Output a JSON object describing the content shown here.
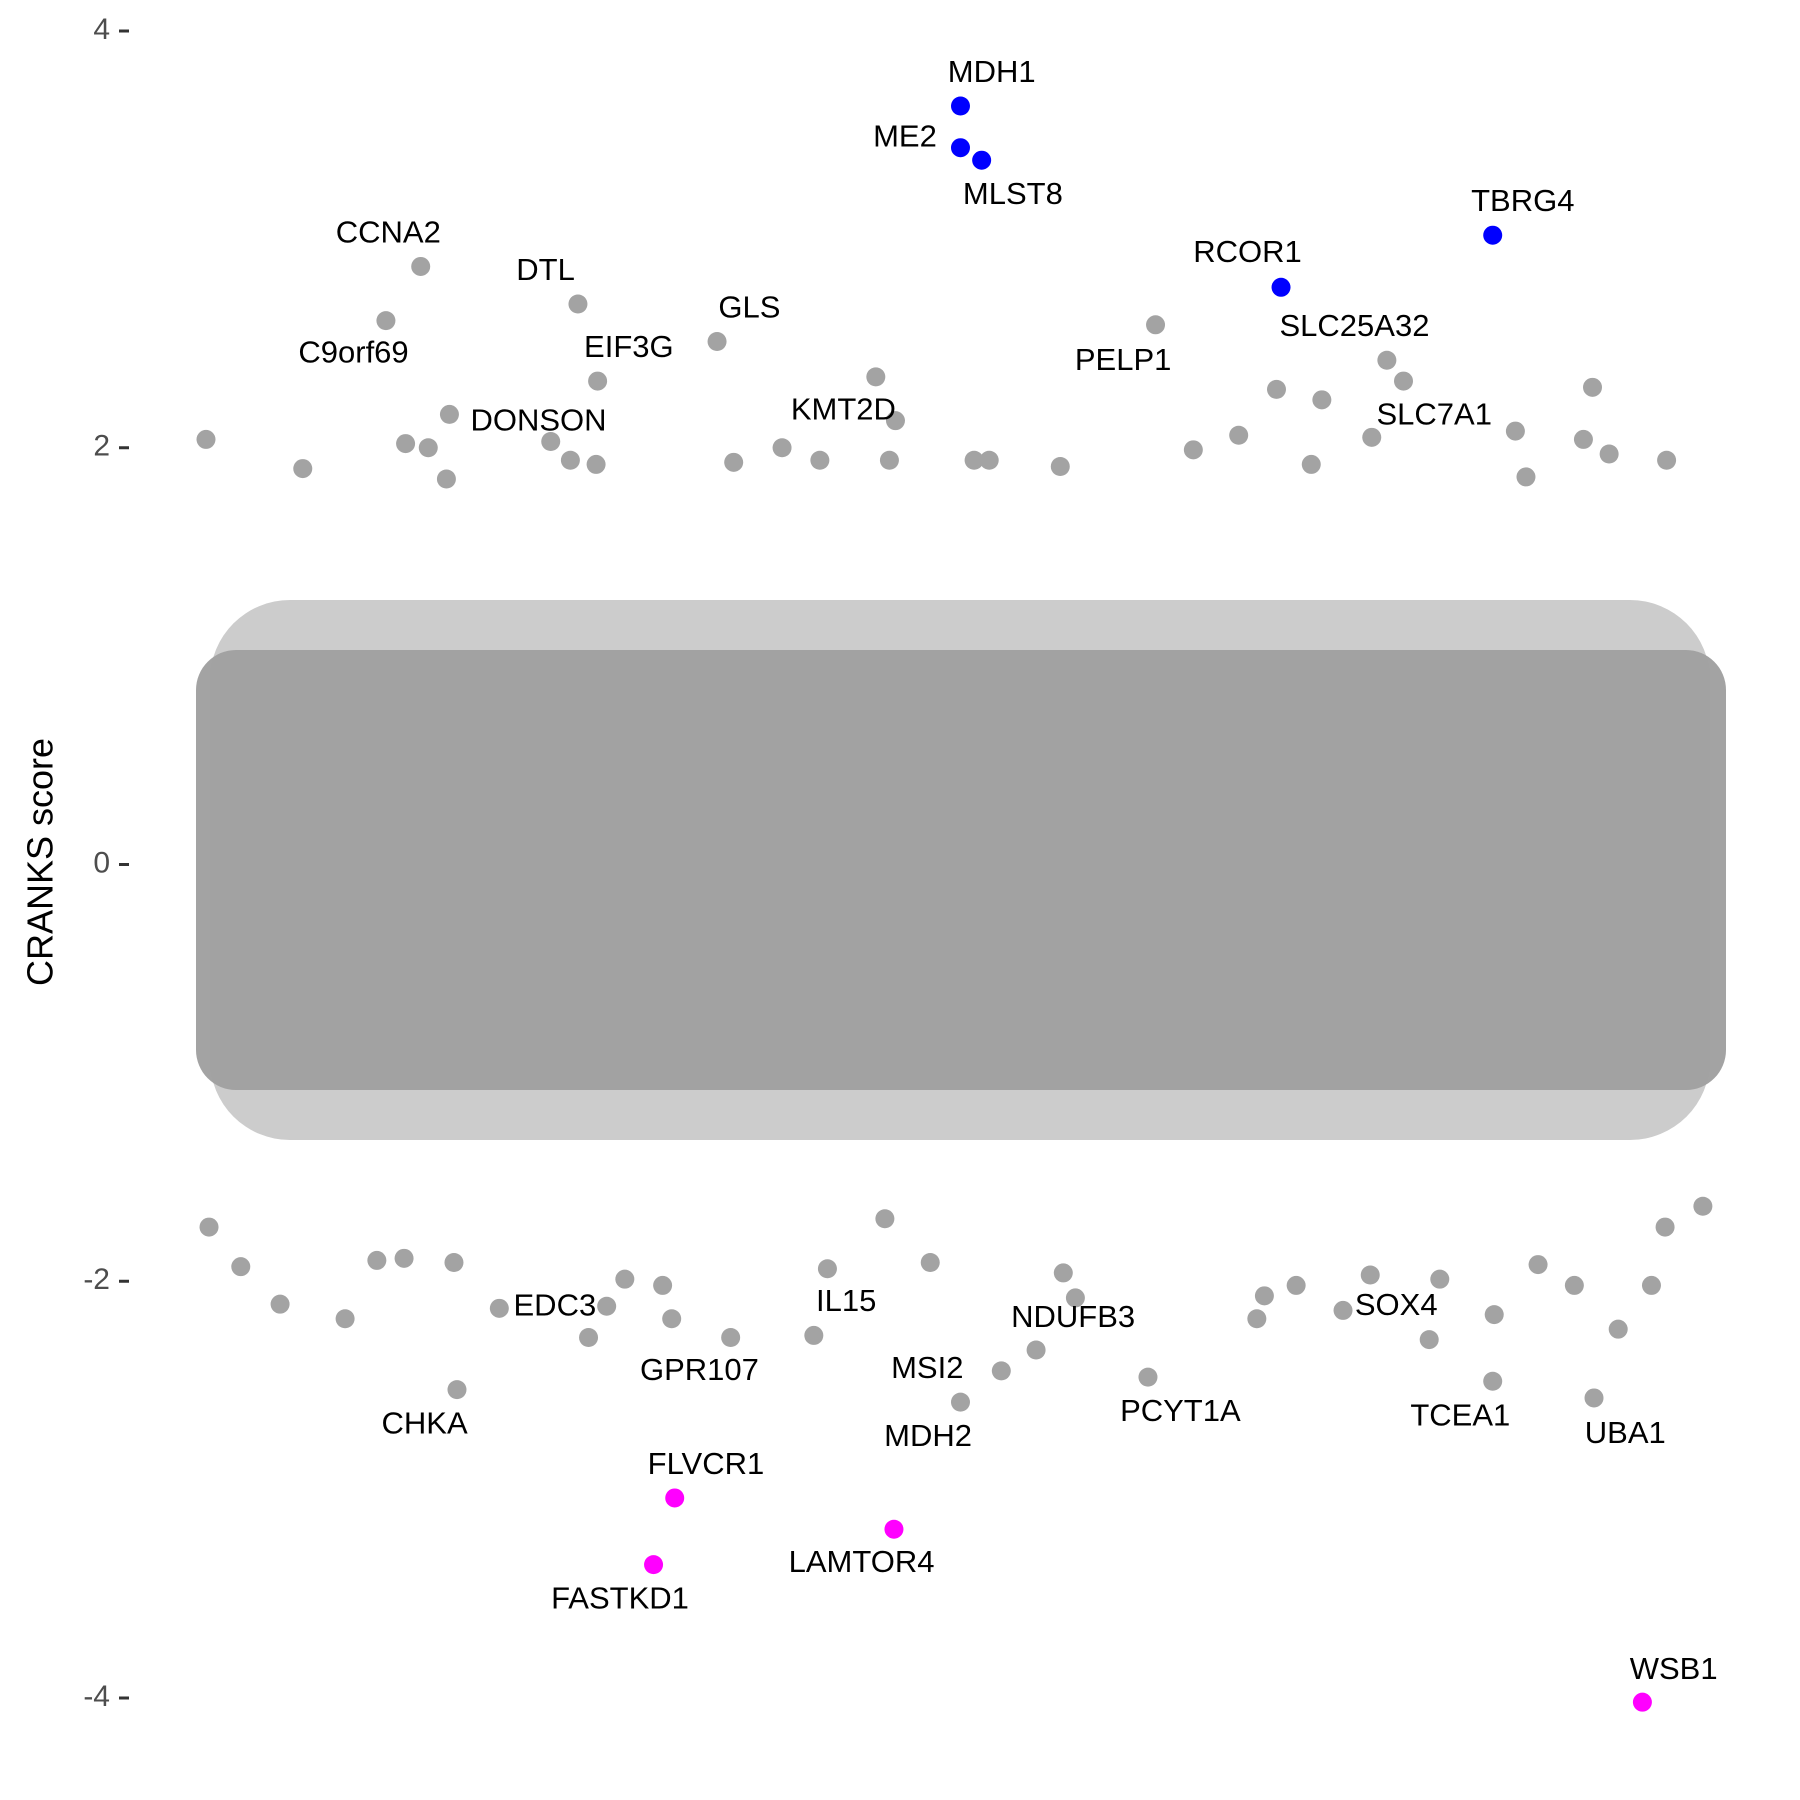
{
  "chart_data": {
    "type": "scatter",
    "ylabel": "CRANKS score",
    "ylim": [
      -4,
      4
    ],
    "yticks": [
      4,
      2,
      0,
      -2,
      -4
    ],
    "xlim": [
      0,
      100
    ],
    "colors": {
      "other": "#a3a3a3",
      "up": "#0000ff",
      "down": "#ff00ff"
    },
    "points": [
      {
        "label": "MDH1",
        "x": 49.9,
        "y": 3.64,
        "group": "up"
      },
      {
        "label": "ME2",
        "x": 49.9,
        "y": 3.44,
        "group": "up"
      },
      {
        "label": "MLST8",
        "x": 51.3,
        "y": 3.38,
        "group": "up"
      },
      {
        "label": "TBRG4",
        "x": 85.1,
        "y": 3.02,
        "group": "up"
      },
      {
        "label": "RCOR1",
        "x": 71.1,
        "y": 2.77,
        "group": "up"
      },
      {
        "label": "CCNA2",
        "x": 14.2,
        "y": 2.87,
        "group": "other"
      },
      {
        "label": "C9orf69",
        "x": 11.9,
        "y": 2.61,
        "group": "other"
      },
      {
        "label": "DTL",
        "x": 24.6,
        "y": 2.69,
        "group": "other"
      },
      {
        "label": "GLS",
        "x": 33.8,
        "y": 2.51,
        "group": "other"
      },
      {
        "label": "EIF3G",
        "x": 25.9,
        "y": 2.32,
        "group": "other"
      },
      {
        "label": "DONSON",
        "x": 16.1,
        "y": 2.16,
        "group": "other"
      },
      {
        "label": "KMT2D",
        "x": 45.6,
        "y": 2.13,
        "group": "other"
      },
      {
        "label": "PELP1",
        "x": 62.8,
        "y": 2.59,
        "group": "other"
      },
      {
        "label": "SLC25A32",
        "x": 78.1,
        "y": 2.42,
        "group": "other"
      },
      {
        "label": "SLC7A1",
        "x": 77.1,
        "y": 2.05,
        "group": "other"
      },
      {
        "label": "EDC3",
        "x": 19.4,
        "y": -2.13,
        "group": "other"
      },
      {
        "label": "GPR107",
        "x": 30.8,
        "y": -2.18,
        "group": "other"
      },
      {
        "label": "IL15",
        "x": 40.2,
        "y": -2.26,
        "group": "other"
      },
      {
        "label": "CHKA",
        "x": 16.6,
        "y": -2.52,
        "group": "other"
      },
      {
        "label": "MSI2",
        "x": 52.6,
        "y": -2.43,
        "group": "other"
      },
      {
        "label": "MDH2",
        "x": 49.9,
        "y": -2.58,
        "group": "other"
      },
      {
        "label": "NDUFB3",
        "x": 54.9,
        "y": -2.33,
        "group": "other"
      },
      {
        "label": "PCYT1A",
        "x": 62.3,
        "y": -2.46,
        "group": "other"
      },
      {
        "label": "SOX4",
        "x": 75.2,
        "y": -2.14,
        "group": "other"
      },
      {
        "label": "TCEA1",
        "x": 85.1,
        "y": -2.48,
        "group": "other"
      },
      {
        "label": "UBA1",
        "x": 91.8,
        "y": -2.56,
        "group": "other"
      },
      {
        "label": "FLVCR1",
        "x": 31.0,
        "y": -3.04,
        "group": "down"
      },
      {
        "label": "FASTKD1",
        "x": 29.6,
        "y": -3.36,
        "group": "down"
      },
      {
        "label": "LAMTOR4",
        "x": 45.5,
        "y": -3.19,
        "group": "down"
      },
      {
        "label": "WSB1",
        "x": 95.0,
        "y": -4.02,
        "group": "down"
      }
    ],
    "background": {
      "x": [
        0,
        6.4,
        13.2,
        14.7,
        15.9,
        22.8,
        24.1,
        25.8,
        34.9,
        38.1,
        40.6,
        44.3,
        45.2,
        50.8,
        51.8,
        56.5,
        65.3,
        68.3,
        70.8,
        73.8,
        79.2,
        86.6,
        91.7,
        91.1,
        92.8,
        96.6,
        73.1,
        87.3,
        0.2,
        2.3,
        4.9,
        9.2,
        11.3,
        13.1,
        16.4,
        25.3,
        26.5,
        27.7,
        30.2,
        34.7,
        41.1,
        44.9,
        47.9,
        56.7,
        57.5,
        69.5,
        70.0,
        72.1,
        77.0,
        81.6,
        80.9,
        85.2,
        88.1,
        90.5,
        93.4,
        95.6,
        96.5,
        99.0
      ],
      "y": [
        2.04,
        1.9,
        2.02,
        2.0,
        1.85,
        2.03,
        1.94,
        1.92,
        1.93,
        2.0,
        1.94,
        2.34,
        1.94,
        1.94,
        1.94,
        1.91,
        1.99,
        2.06,
        2.28,
        2.23,
        2.32,
        2.08,
        2.29,
        2.04,
        1.97,
        1.94,
        1.92,
        1.86,
        -1.74,
        -1.93,
        -2.11,
        -2.18,
        -1.9,
        -1.89,
        -1.91,
        -2.27,
        -2.12,
        -1.99,
        -2.02,
        -2.27,
        -1.94,
        -1.7,
        -1.91,
        -1.96,
        -2.08,
        -2.18,
        -2.07,
        -2.02,
        -1.97,
        -1.99,
        -2.28,
        -2.16,
        -1.92,
        -2.02,
        -2.23,
        -2.02,
        -1.74,
        -1.64
      ]
    }
  }
}
